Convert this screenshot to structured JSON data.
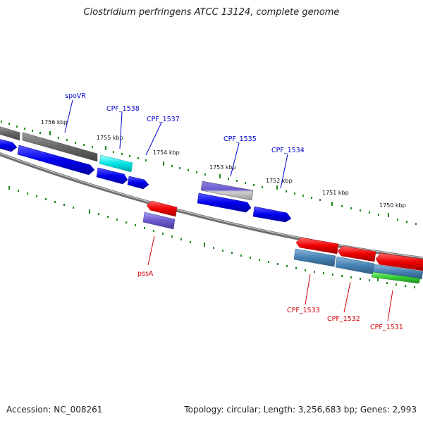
{
  "title": "Clostridium perfringens ATCC 13124, complete genome",
  "footer": {
    "accession": "Accession: NC_008261",
    "summary": "Topology: circular; Length: 3,256,683 bp; Genes: 2,993"
  },
  "scale_labels": [
    "1756 kbp",
    "1755 kbp",
    "1754 kbp",
    "1753 kbp",
    "1752 kbp",
    "1751 kbp",
    "1750 kbp"
  ],
  "gene_labels_top": [
    "spoVR",
    "CPF_1538",
    "CPF_1537",
    "CPF_1535",
    "CPF_1534"
  ],
  "gene_labels_bottom": [
    "pssA",
    "CPF_1533",
    "CPF_1532",
    "CPF_1531"
  ],
  "colors": {
    "label_forward": "#0000cc",
    "label_reverse": "#cc0000",
    "gene_blue": "#0000ee",
    "gene_red": "#ee0000",
    "gene_cyan": "#00e5e5",
    "gene_purple": "#6a5acd",
    "gene_gray": "#666666",
    "gene_steel": "#4682b4",
    "gene_green": "#33cc33",
    "tick_green": "#228b22",
    "backbone": "#777777"
  }
}
